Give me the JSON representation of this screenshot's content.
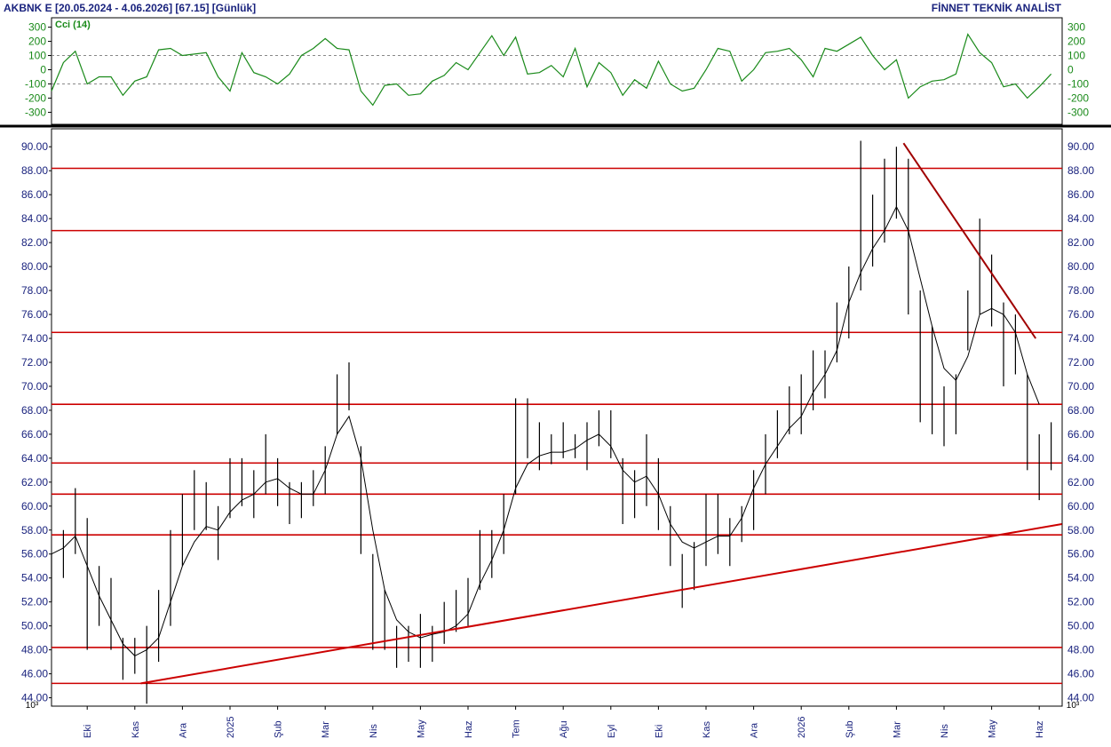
{
  "header": {
    "title": "AKBNK E  [20.05.2024 - 4.06.2026]  [67.15]  [Günlük]",
    "source": "FİNNET TEKNİK ANALİST"
  },
  "chart_data": [
    {
      "type": "line",
      "title": "Cci (14)",
      "color": "#1a8a1a",
      "ylim": [
        -360,
        360
      ],
      "yticks": [
        300,
        200,
        100,
        0,
        -100,
        -200,
        -300
      ],
      "reference_lines": [
        100,
        -100
      ],
      "values": [
        -150,
        50,
        130,
        -100,
        -50,
        -50,
        -180,
        -80,
        -50,
        140,
        150,
        100,
        110,
        120,
        -50,
        -150,
        120,
        -20,
        -50,
        -100,
        -30,
        100,
        150,
        220,
        150,
        140,
        -150,
        -250,
        -110,
        -100,
        -180,
        -170,
        -80,
        -40,
        50,
        0,
        120,
        240,
        100,
        230,
        -30,
        -20,
        30,
        -50,
        150,
        -120,
        50,
        -20,
        -180,
        -70,
        -130,
        60,
        -100,
        -150,
        -130,
        0,
        150,
        130,
        -80,
        0,
        120,
        130,
        150,
        70,
        -50,
        150,
        130,
        180,
        230,
        100,
        0,
        70,
        -200,
        -120,
        -80,
        -70,
        -30,
        250,
        120,
        50,
        -120,
        -100,
        -200,
        -120,
        -30
      ]
    },
    {
      "type": "ohlc",
      "axis_multiplier": "10³",
      "bar_color": "#000000",
      "ma_color": "#000000",
      "ylim": [
        43.3,
        91.5
      ],
      "yticks": [
        {
          "value": 44,
          "label": "44.00"
        },
        {
          "value": 46,
          "label": "46.00"
        },
        {
          "value": 48,
          "label": "48.00"
        },
        {
          "value": 50,
          "label": "50.00"
        },
        {
          "value": 52,
          "label": "52.00"
        },
        {
          "value": 54,
          "label": "54.00"
        },
        {
          "value": 56,
          "label": "56.00"
        },
        {
          "value": 58,
          "label": "58.00"
        },
        {
          "value": 60,
          "label": "60.00"
        },
        {
          "value": 62,
          "label": "62.00"
        },
        {
          "value": 64,
          "label": "64.00"
        },
        {
          "value": 66,
          "label": "66.00"
        },
        {
          "value": 68,
          "label": "68.00"
        },
        {
          "value": 70,
          "label": "70.00"
        },
        {
          "value": 72,
          "label": "72.00"
        },
        {
          "value": 74,
          "label": "74.00"
        },
        {
          "value": 76,
          "label": "76.00"
        },
        {
          "value": 78,
          "label": "78.00"
        },
        {
          "value": 80,
          "label": "80.00"
        },
        {
          "value": 82,
          "label": "82.00"
        },
        {
          "value": 84,
          "label": "84.00"
        },
        {
          "value": 86,
          "label": "86.00"
        },
        {
          "value": 88,
          "label": "88.00"
        },
        {
          "value": 90,
          "label": "90.00"
        }
      ],
      "categories": [
        null,
        null,
        null,
        "Eki",
        null,
        null,
        null,
        "Kas",
        null,
        null,
        null,
        "Ara",
        null,
        null,
        null,
        "2025",
        null,
        null,
        null,
        "Şub",
        null,
        null,
        null,
        "Mar",
        null,
        null,
        null,
        "Nis",
        null,
        null,
        null,
        "May",
        null,
        null,
        null,
        "Haz",
        null,
        null,
        null,
        "Tem",
        null,
        null,
        null,
        "Ağu",
        null,
        null,
        null,
        "Eyl",
        null,
        null,
        null,
        "Eki",
        null,
        null,
        null,
        "Kas",
        null,
        null,
        null,
        "Ara",
        null,
        null,
        null,
        "2026",
        null,
        null,
        null,
        "Şub",
        null,
        null,
        null,
        "Mar",
        null,
        null,
        null,
        "Nis",
        null,
        null,
        null,
        "May",
        null,
        null,
        null,
        "Haz",
        null
      ],
      "high": [
        56,
        58,
        61.5,
        59,
        55,
        54,
        49,
        49,
        50,
        53,
        58,
        61,
        63,
        62,
        60,
        64,
        64,
        63,
        66,
        64,
        62,
        62,
        63,
        65,
        71,
        72,
        65,
        56,
        53,
        50,
        50,
        51,
        50,
        52,
        53,
        54,
        58,
        58,
        61,
        69,
        69,
        67,
        66,
        67,
        66,
        67,
        68,
        68,
        64,
        63,
        66,
        64,
        60,
        56,
        57,
        61,
        61,
        59,
        60,
        63,
        66,
        68,
        70,
        71,
        73,
        73,
        77,
        80,
        90.5,
        86,
        89,
        90,
        89,
        78,
        75,
        70,
        71,
        78,
        84,
        81,
        77,
        76,
        71,
        66,
        67
      ],
      "low": [
        52,
        54,
        56,
        48,
        50,
        48,
        45.5,
        46,
        43.5,
        47,
        50,
        55,
        58,
        58,
        55.5,
        59,
        60,
        59,
        61,
        60,
        58.5,
        59,
        60,
        61,
        66,
        68,
        56,
        48,
        48,
        46.5,
        47,
        46.5,
        47,
        48.5,
        49.5,
        50,
        53,
        54,
        56,
        61,
        64,
        63,
        63.5,
        64,
        64,
        63,
        65,
        64,
        58.5,
        59,
        60,
        58,
        55,
        51.5,
        53,
        55,
        56,
        55,
        57,
        58,
        61,
        64,
        66,
        66,
        68,
        69,
        72,
        74,
        78,
        80,
        82,
        84,
        76,
        67,
        66,
        65,
        66,
        73,
        76,
        75,
        70,
        71,
        63,
        60.5,
        63
      ],
      "ma": [
        56,
        56.5,
        57.5,
        55,
        52.5,
        50.5,
        48.5,
        47.5,
        48,
        49,
        52,
        55,
        57,
        58.3,
        58,
        59.5,
        60.5,
        61,
        62,
        62.3,
        61.5,
        61,
        61,
        63,
        66,
        67.5,
        64,
        58,
        53,
        50.5,
        49.5,
        49,
        49.3,
        49.5,
        50,
        51,
        53.5,
        55.5,
        58,
        61.5,
        63.5,
        64.2,
        64.5,
        64.5,
        64.8,
        65.5,
        66,
        65,
        63,
        62,
        62.5,
        61,
        58.5,
        57,
        56.5,
        57,
        57.5,
        57.5,
        59,
        61.5,
        63.5,
        65,
        66.5,
        67.5,
        69.5,
        71,
        73,
        77,
        79.5,
        81.5,
        83,
        85,
        83,
        79,
        75,
        71.5,
        70.5,
        72.5,
        76,
        76.5,
        76,
        74.5,
        71,
        68.5,
        null
      ],
      "hlines": [
        88.2,
        83.0,
        74.5,
        68.5,
        63.6,
        61.0,
        57.6,
        48.2,
        45.2
      ],
      "hline_color": "#cc0000",
      "trend_lines": [
        {
          "color": "#cc0000",
          "x": [
            7.5,
            84.9
          ],
          "values": [
            45.2,
            58.5
          ]
        },
        {
          "color": "#a00000",
          "x": [
            71.6,
            82.7
          ],
          "values": [
            90.3,
            74.0
          ]
        }
      ]
    }
  ]
}
